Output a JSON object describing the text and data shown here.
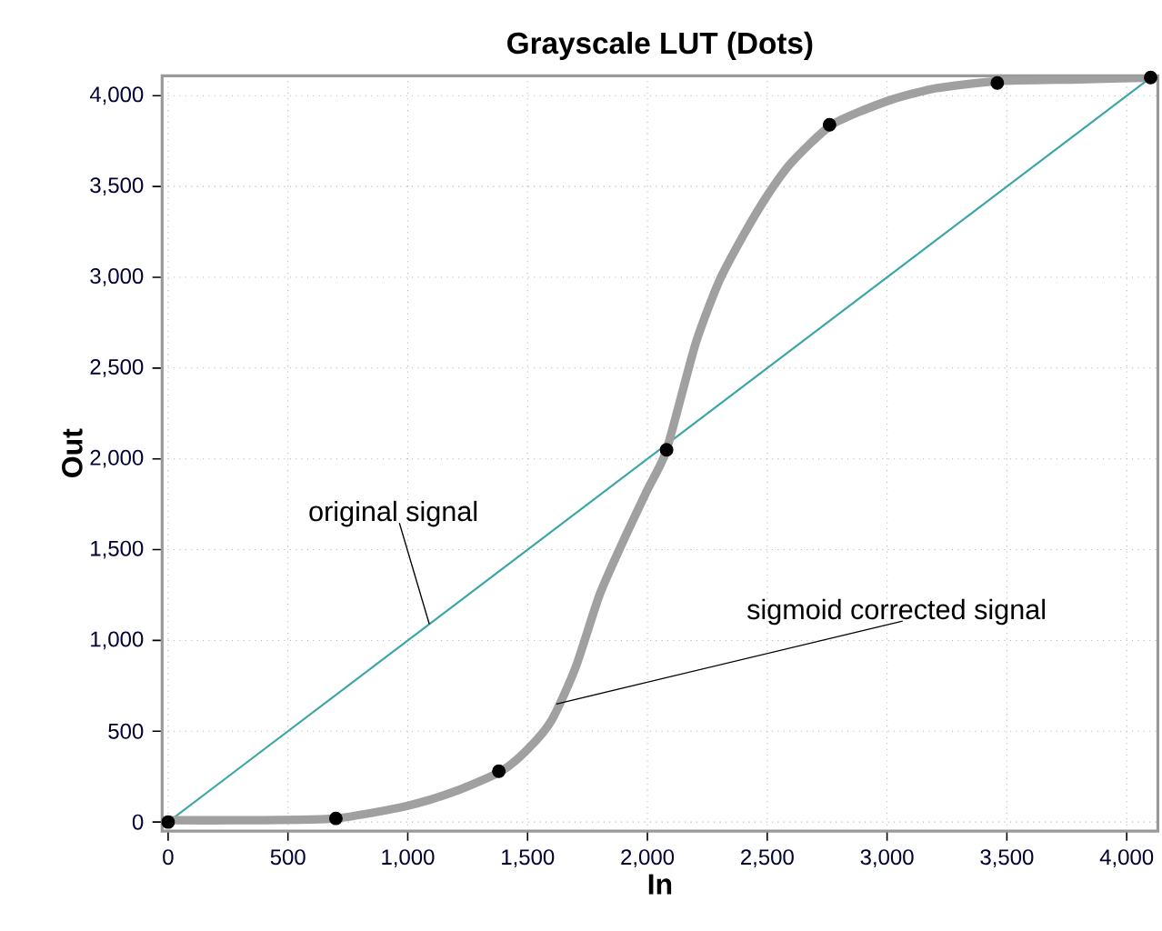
{
  "chart_data": {
    "type": "line",
    "title": "Grayscale LUT (Dots)",
    "xlabel": "In",
    "ylabel": "Out",
    "xlim": [
      -25,
      4130
    ],
    "ylim": [
      -50,
      4110
    ],
    "xticks": [
      0,
      500,
      {
        "value": 1000,
        "label": "1,000"
      },
      {
        "value": 1500,
        "label": "1,500"
      },
      {
        "value": 2000,
        "label": "2,000"
      },
      {
        "value": 2500,
        "label": "2,500"
      },
      {
        "value": 3000,
        "label": "3,000"
      },
      {
        "value": 3500,
        "label": "3,500"
      },
      {
        "value": 4000,
        "label": "4,000"
      }
    ],
    "yticks": [
      0,
      500,
      {
        "value": 1000,
        "label": "1,000"
      },
      {
        "value": 1500,
        "label": "1,500"
      },
      {
        "value": 2000,
        "label": "2,000"
      },
      {
        "value": 2500,
        "label": "2,500"
      },
      {
        "value": 3000,
        "label": "3,000"
      },
      {
        "value": 3500,
        "label": "3,500"
      },
      {
        "value": 4000,
        "label": "4,000"
      }
    ],
    "grid": true,
    "line_style": "solid",
    "series": [
      {
        "color": "#3aa6a6",
        "x": [
          0,
          4100
        ],
        "values": [
          0,
          4100
        ]
      },
      {
        "color": "#a0a0a0",
        "x": [
          0,
          350,
          700,
          1000,
          1200,
          1390,
          1500,
          1600,
          1700,
          1800,
          1900,
          2000,
          2080,
          2200,
          2300,
          2400,
          2500,
          2600,
          2770,
          3000,
          3200,
          3460,
          3800,
          4100
        ],
        "values": [
          10,
          10,
          20,
          90,
          170,
          280,
          400,
          560,
          850,
          1250,
          1550,
          1830,
          2050,
          2630,
          2980,
          3230,
          3450,
          3630,
          3840,
          3970,
          4040,
          4080,
          4090,
          4100
        ]
      },
      {
        "type": "scatter",
        "color": "#000000",
        "x": [
          0,
          700,
          1380,
          2080,
          2760,
          3460,
          4100
        ],
        "values": [
          0,
          20,
          280,
          2050,
          3840,
          4070,
          4100
        ]
      }
    ],
    "annotations": [
      {
        "text": "original signal",
        "x": 1090,
        "y": 1090
      },
      {
        "text": "sigmoid corrected signal",
        "x": 1620,
        "y": 650
      }
    ]
  }
}
